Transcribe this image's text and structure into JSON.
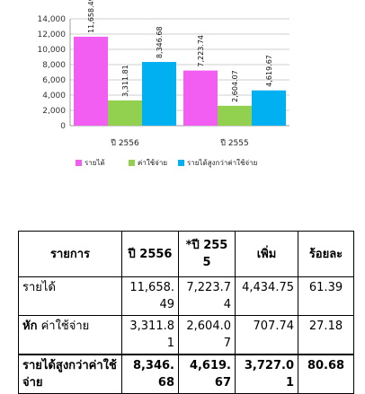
{
  "chart_data": {
    "type": "bar",
    "categories": [
      "ปี 2556",
      "ปี 2555"
    ],
    "series": [
      {
        "name": "รายได้",
        "values": [
          11658.49,
          7223.74
        ],
        "labels": [
          "11,658.49",
          "7,223.74"
        ],
        "color": "#F15EF1"
      },
      {
        "name": "ค่าใช้จ่าย",
        "values": [
          3311.81,
          2604.07
        ],
        "labels": [
          "3,311.81",
          "2,604.07"
        ],
        "color": "#92D050"
      },
      {
        "name": "รายได้สูงกว่าค่าใช้จ่าย",
        "values": [
          8346.68,
          4619.67
        ],
        "labels": [
          "8,346.68",
          "4,619.67"
        ],
        "color": "#00B0F0"
      }
    ],
    "yticks": [
      "0",
      "2,000",
      "4,000",
      "6,000",
      "8,000",
      "10,000",
      "12,000",
      "14,000"
    ],
    "ylim": [
      0,
      14000
    ],
    "grid": true,
    "legend_position": "bottom"
  },
  "table": {
    "headers": {
      "item": "รายการ",
      "y2556": "ปี 2556",
      "y2555": "*ปี 2555",
      "increase": "เพิ่ม",
      "percent": "ร้อยละ"
    },
    "rows": {
      "revenue": {
        "label": "รายได้",
        "y2556": "11,658.49",
        "y2555": "7,223.74",
        "increase": "4,434.75",
        "percent": "61.39"
      },
      "expense": {
        "label_prefix": "หัก",
        "label": " ค่าใช้จ่าย",
        "y2556": "3,311.81",
        "y2555": "2,604.07",
        "increase": "707.74",
        "percent": "27.18"
      },
      "surplus": {
        "label": "รายได้สูงกว่าค่าใช้จ่าย",
        "y2556": "8,346.68",
        "y2555": "4,619.67",
        "increase": "3,727.01",
        "percent": "80.68"
      }
    }
  }
}
